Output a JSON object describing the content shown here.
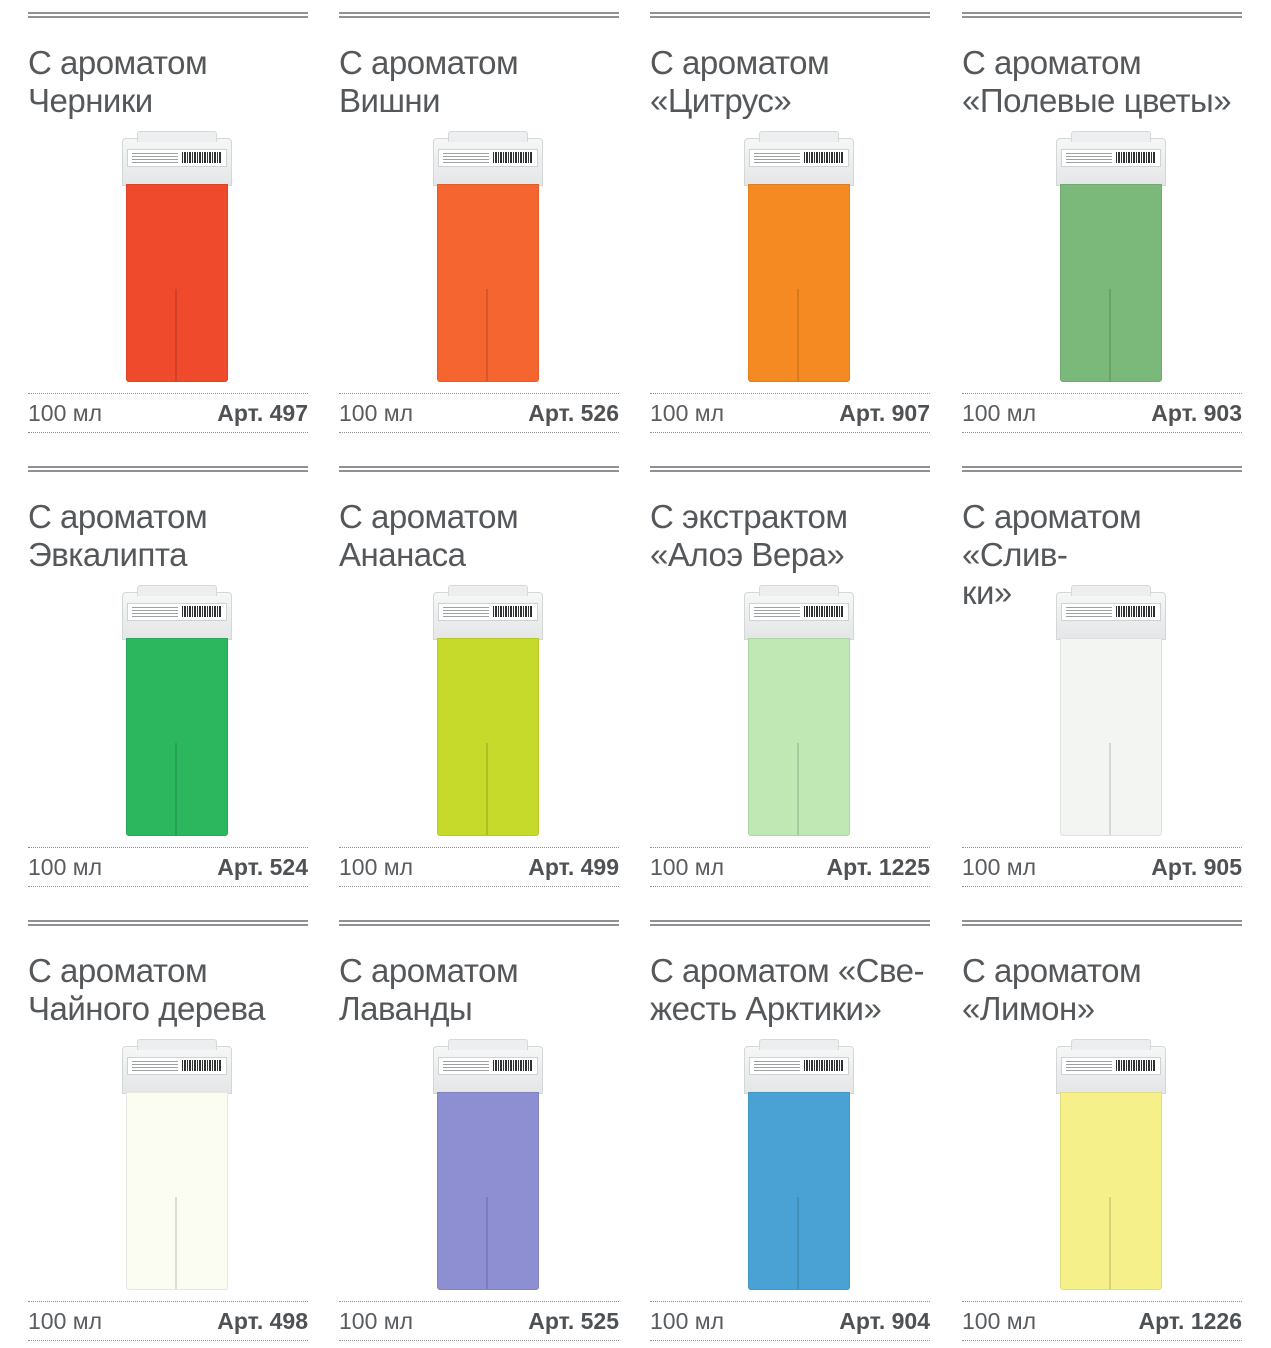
{
  "products": [
    {
      "title": "С ароматом\nЧерники",
      "volume": "100 мл",
      "article": "Арт. 497",
      "color": "#ef4a2b"
    },
    {
      "title": "С ароматом\nВишни",
      "volume": "100 мл",
      "article": "Арт. 526",
      "color": "#f46530"
    },
    {
      "title": "С ароматом\n«Цитрус»",
      "volume": "100 мл",
      "article": "Арт. 907",
      "color": "#f58a22"
    },
    {
      "title": "С ароматом\n«Полевые цветы»",
      "volume": "100 мл",
      "article": "Арт. 903",
      "color": "#7ab97a"
    },
    {
      "title": "С ароматом\nЭвкалипта",
      "volume": "100 мл",
      "article": "Арт. 524",
      "color": "#2cb75f"
    },
    {
      "title": "С ароматом\nАнанаса",
      "volume": "100 мл",
      "article": "Арт. 499",
      "color": "#c5da2a"
    },
    {
      "title": "С экстрактом\n«Алоэ Вера»",
      "volume": "100 мл",
      "article": "Арт. 1225",
      "color": "#bfe8b4"
    },
    {
      "title": "С ароматом «Слив-\nки»",
      "volume": "100 мл",
      "article": "Арт. 905",
      "color": "#f3f5f2"
    },
    {
      "title": "С ароматом\nЧайного дерева",
      "volume": "100 мл",
      "article": "Арт. 498",
      "color": "#fbfcf2"
    },
    {
      "title": "С ароматом\nЛаванды",
      "volume": "100 мл",
      "article": "Арт. 525",
      "color": "#8e8fd2"
    },
    {
      "title": "С ароматом «Све-\nжесть Арктики»",
      "volume": "100 мл",
      "article": "Арт. 904",
      "color": "#4aa2d4"
    },
    {
      "title": "С ароматом\n«Лимон»",
      "volume": "100 мл",
      "article": "Арт. 1226",
      "color": "#f6f08a"
    }
  ]
}
